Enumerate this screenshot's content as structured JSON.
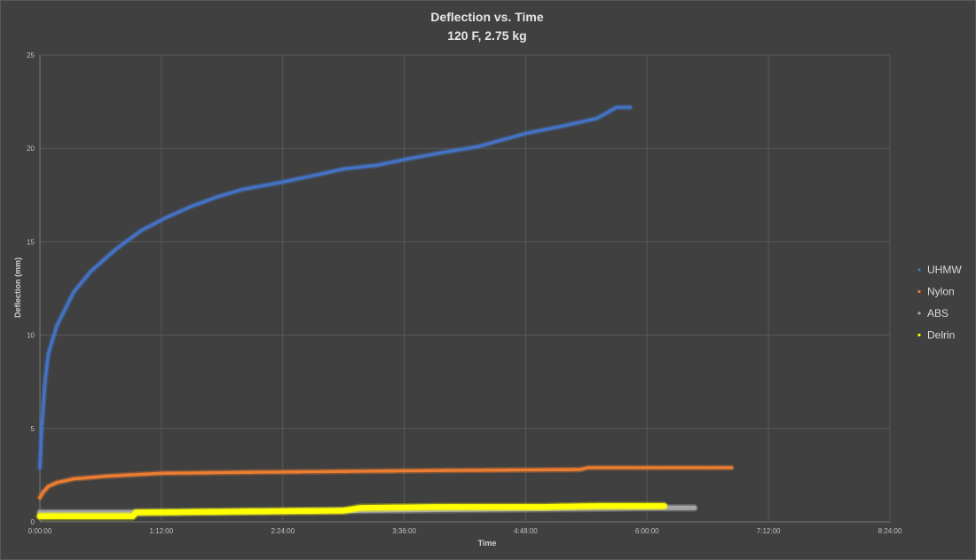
{
  "chart_data": {
    "type": "scatter",
    "title": "Deflection vs. Time",
    "subtitle": "120 F, 2.75 kg",
    "xlabel": "Time",
    "ylabel": "Deflection (mm)",
    "xlim": [
      "0:00:00",
      "8:24:00"
    ],
    "ylim": [
      0,
      25
    ],
    "x_ticks": [
      "0:00:00",
      "1:12:00",
      "2:24:00",
      "3:36:00",
      "4:48:00",
      "6:00:00",
      "7:12:00",
      "8:24:00"
    ],
    "y_ticks": [
      "0",
      "5",
      "10",
      "15",
      "20",
      "25"
    ],
    "grid": true,
    "legend_position": "right",
    "series": [
      {
        "name": "UHMW",
        "color": "#4472C4",
        "points": [
          {
            "x": "0:00:00",
            "y": 2.9
          },
          {
            "x": "0:01:00",
            "y": 5.0
          },
          {
            "x": "0:03:00",
            "y": 7.5
          },
          {
            "x": "0:05:00",
            "y": 9.0
          },
          {
            "x": "0:10:00",
            "y": 10.5
          },
          {
            "x": "0:20:00",
            "y": 12.3
          },
          {
            "x": "0:30:00",
            "y": 13.4
          },
          {
            "x": "0:45:00",
            "y": 14.6
          },
          {
            "x": "1:00:00",
            "y": 15.6
          },
          {
            "x": "1:15:00",
            "y": 16.3
          },
          {
            "x": "1:30:00",
            "y": 16.9
          },
          {
            "x": "1:45:00",
            "y": 17.4
          },
          {
            "x": "2:00:00",
            "y": 17.8
          },
          {
            "x": "2:24:00",
            "y": 18.2
          },
          {
            "x": "2:45:00",
            "y": 18.6
          },
          {
            "x": "3:00:00",
            "y": 18.9
          },
          {
            "x": "3:20:00",
            "y": 19.1
          },
          {
            "x": "3:36:00",
            "y": 19.4
          },
          {
            "x": "4:00:00",
            "y": 19.8
          },
          {
            "x": "4:20:00",
            "y": 20.1
          },
          {
            "x": "4:48:00",
            "y": 20.8
          },
          {
            "x": "5:10:00",
            "y": 21.2
          },
          {
            "x": "5:30:00",
            "y": 21.6
          },
          {
            "x": "5:42:00",
            "y": 22.2
          },
          {
            "x": "5:50:00",
            "y": 22.2
          }
        ]
      },
      {
        "name": "Nylon",
        "color": "#ED7D31",
        "points": [
          {
            "x": "0:00:00",
            "y": 1.3
          },
          {
            "x": "0:02:00",
            "y": 1.6
          },
          {
            "x": "0:05:00",
            "y": 1.9
          },
          {
            "x": "0:10:00",
            "y": 2.1
          },
          {
            "x": "0:20:00",
            "y": 2.3
          },
          {
            "x": "0:40:00",
            "y": 2.45
          },
          {
            "x": "1:12:00",
            "y": 2.6
          },
          {
            "x": "2:00:00",
            "y": 2.65
          },
          {
            "x": "3:00:00",
            "y": 2.7
          },
          {
            "x": "4:00:00",
            "y": 2.75
          },
          {
            "x": "5:20:00",
            "y": 2.8
          },
          {
            "x": "5:25:00",
            "y": 2.9
          },
          {
            "x": "6:00:00",
            "y": 2.9
          },
          {
            "x": "6:50:00",
            "y": 2.9
          }
        ]
      },
      {
        "name": "ABS",
        "color": "#A5A5A5",
        "points": [
          {
            "x": "0:00:00",
            "y": 0.5
          },
          {
            "x": "0:30:00",
            "y": 0.5
          },
          {
            "x": "1:00:00",
            "y": 0.5
          },
          {
            "x": "2:00:00",
            "y": 0.55
          },
          {
            "x": "3:00:00",
            "y": 0.6
          },
          {
            "x": "4:00:00",
            "y": 0.65
          },
          {
            "x": "5:00:00",
            "y": 0.7
          },
          {
            "x": "6:00:00",
            "y": 0.75
          },
          {
            "x": "6:28:00",
            "y": 0.75
          }
        ]
      },
      {
        "name": "Delrin",
        "color": "#FFFF00",
        "points": [
          {
            "x": "0:00:00",
            "y": 0.3
          },
          {
            "x": "0:30:00",
            "y": 0.3
          },
          {
            "x": "0:55:00",
            "y": 0.3
          },
          {
            "x": "0:57:00",
            "y": 0.5
          },
          {
            "x": "2:00:00",
            "y": 0.55
          },
          {
            "x": "3:00:00",
            "y": 0.6
          },
          {
            "x": "3:10:00",
            "y": 0.75
          },
          {
            "x": "4:00:00",
            "y": 0.8
          },
          {
            "x": "5:00:00",
            "y": 0.8
          },
          {
            "x": "5:30:00",
            "y": 0.85
          },
          {
            "x": "6:10:00",
            "y": 0.85
          }
        ]
      }
    ]
  }
}
